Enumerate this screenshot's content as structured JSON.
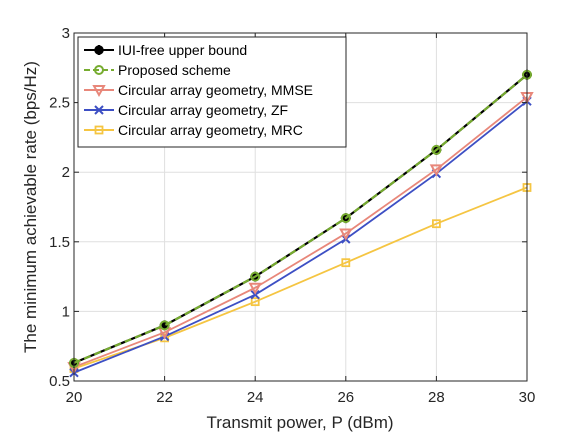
{
  "chart_data": {
    "type": "line",
    "xlabel": "Transmit power, P (dBm)",
    "ylabel": "The minimum achievable rate (bps/Hz)",
    "xlim": [
      20,
      30
    ],
    "ylim": [
      0.5,
      3
    ],
    "xticks": [
      20,
      22,
      24,
      26,
      28,
      30
    ],
    "yticks": [
      0.5,
      1,
      1.5,
      2,
      2.5,
      3
    ],
    "xtick_labels": [
      "20",
      "22",
      "24",
      "26",
      "28",
      "30"
    ],
    "ytick_labels": [
      "0.5",
      "1",
      "1.5",
      "2",
      "2.5",
      "3"
    ],
    "grid": true,
    "legend_position": "top-left",
    "x": [
      20,
      22,
      24,
      26,
      28,
      30
    ],
    "series": [
      {
        "name": "IUI-free upper bound",
        "color": "#000000",
        "marker": "filled-circle-plus",
        "dash": "solid",
        "values": [
          0.63,
          0.9,
          1.25,
          1.67,
          2.16,
          2.7
        ]
      },
      {
        "name": "Proposed scheme",
        "color": "#77ac30",
        "marker": "circle",
        "dash": "dashed",
        "values": [
          0.63,
          0.9,
          1.25,
          1.67,
          2.16,
          2.7
        ]
      },
      {
        "name": "Circular array geometry, MMSE",
        "color": "#e8877a",
        "marker": "triangle-down",
        "dash": "solid",
        "values": [
          0.6,
          0.85,
          1.17,
          1.56,
          2.02,
          2.54
        ]
      },
      {
        "name": "Circular array geometry, ZF",
        "color": "#3d4fc4",
        "marker": "x",
        "dash": "solid",
        "values": [
          0.56,
          0.82,
          1.12,
          1.52,
          1.99,
          2.51
        ]
      },
      {
        "name": "Circular array geometry, MRC",
        "color": "#f5c542",
        "marker": "square",
        "dash": "solid",
        "values": [
          0.59,
          0.81,
          1.07,
          1.35,
          1.63,
          1.89
        ]
      }
    ]
  }
}
